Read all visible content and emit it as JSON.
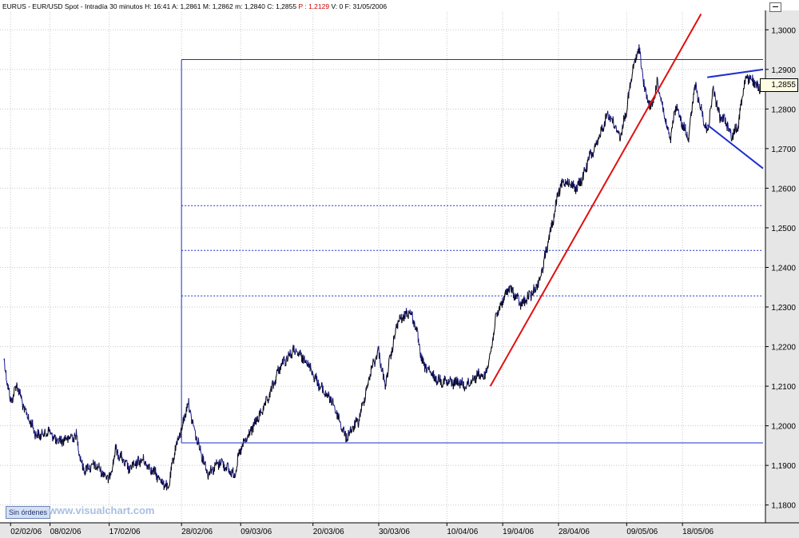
{
  "header": {
    "symbol": "EURUS",
    "description": "EUR/USD Spot - Intradía 30 minutos",
    "h_label": "H:",
    "h_value": "16:41",
    "a_label": "A:",
    "a_value": "1,2861",
    "m_label": "M:",
    "m_value": "1,2862",
    "low_label": "m:",
    "low_value": "1,2840",
    "c_label": "C:",
    "c_value": "1,2855",
    "p_label": "P :",
    "p_value": "1,2129",
    "v_label": "V:",
    "v_value": "0",
    "f_label": "F:",
    "f_value": "31/05/2006"
  },
  "buttons": {
    "orders_label": "Sin órdenes"
  },
  "watermark": "www.visualchart.com",
  "current_price_label": "1,2855",
  "colors": {
    "price_up": "#000000",
    "price_down": "#1a1a8c",
    "trendline": "#e01010",
    "overlay": "#1f2fcc",
    "header_red": "#cc0000",
    "axis_bg": "#e6e6e6"
  },
  "chart_data": {
    "type": "line",
    "title": "EURUS - EUR/USD Spot - Intradía 30 minutos",
    "xlabel": "",
    "ylabel": "",
    "x_ticks": [
      "02/02/06",
      "08/02/06",
      "17/02/06",
      "28/02/06",
      "09/03/06",
      "20/03/06",
      "30/03/06",
      "10/04/06",
      "19/04/06",
      "28/04/06",
      "09/05/06",
      "18/05/06"
    ],
    "y_ticks": [
      "1,1800",
      "1,1900",
      "1,2000",
      "1,2100",
      "1,2200",
      "1,2300",
      "1,2400",
      "1,2500",
      "1,2600",
      "1,2700",
      "1,2800",
      "1,2900",
      "1,3000"
    ],
    "ylim": [
      1.1755,
      1.3045
    ],
    "grid": true,
    "series": [
      {
        "kind": "intraday-price",
        "anchors": [
          [
            "01/02/06",
            1.2165
          ],
          [
            "02/02/06",
            1.206
          ],
          [
            "03/02/06",
            1.2105
          ],
          [
            "04/02/06",
            1.2045
          ],
          [
            "06/02/06",
            1.1975
          ],
          [
            "08/02/06",
            1.1985
          ],
          [
            "09/02/06",
            1.196
          ],
          [
            "12/02/06",
            1.1975
          ],
          [
            "13/02/06",
            1.189
          ],
          [
            "15/02/06",
            1.19
          ],
          [
            "17/02/06",
            1.1865
          ],
          [
            "18/02/06",
            1.194
          ],
          [
            "20/02/06",
            1.189
          ],
          [
            "22/02/06",
            1.1915
          ],
          [
            "24/02/06",
            1.188
          ],
          [
            "26/02/06",
            1.184
          ],
          [
            "27/02/06",
            1.194
          ],
          [
            "28/02/06",
            1.199
          ],
          [
            "01/03/06",
            1.206
          ],
          [
            "02/03/06",
            1.1985
          ],
          [
            "04/03/06",
            1.188
          ],
          [
            "06/03/06",
            1.191
          ],
          [
            "08/03/06",
            1.1875
          ],
          [
            "09/03/06",
            1.194
          ],
          [
            "11/03/06",
            1.2
          ],
          [
            "13/03/06",
            1.206
          ],
          [
            "15/03/06",
            1.215
          ],
          [
            "17/03/06",
            1.219
          ],
          [
            "19/03/06",
            1.2165
          ],
          [
            "21/03/06",
            1.21
          ],
          [
            "23/03/06",
            1.206
          ],
          [
            "25/03/06",
            1.197
          ],
          [
            "27/03/06",
            1.2015
          ],
          [
            "29/03/06",
            1.215
          ],
          [
            "30/03/06",
            1.219
          ],
          [
            "31/03/06",
            1.21
          ],
          [
            "02/04/06",
            1.226
          ],
          [
            "04/04/06",
            1.229
          ],
          [
            "05/04/06",
            1.225
          ],
          [
            "06/04/06",
            1.216
          ],
          [
            "08/04/06",
            1.212
          ],
          [
            "10/04/06",
            1.211
          ],
          [
            "12/04/06",
            1.211
          ],
          [
            "13/04/06",
            1.21
          ],
          [
            "15/04/06",
            1.213
          ],
          [
            "16/04/06",
            1.212
          ],
          [
            "17/04/06",
            1.218
          ],
          [
            "18/04/06",
            1.228
          ],
          [
            "20/04/06",
            1.235
          ],
          [
            "21/04/06",
            1.233
          ],
          [
            "22/04/06",
            1.2305
          ],
          [
            "24/04/06",
            1.234
          ],
          [
            "25/04/06",
            1.237
          ],
          [
            "26/04/06",
            1.244
          ],
          [
            "27/04/06",
            1.251
          ],
          [
            "28/04/06",
            1.259
          ],
          [
            "29/04/06",
            1.262
          ],
          [
            "01/05/06",
            1.26
          ],
          [
            "02/05/06",
            1.263
          ],
          [
            "03/05/06",
            1.268
          ],
          [
            "04/05/06",
            1.27
          ],
          [
            "05/05/06",
            1.275
          ],
          [
            "06/05/06",
            1.279
          ],
          [
            "07/05/06",
            1.276
          ],
          [
            "08/05/06",
            1.273
          ],
          [
            "09/05/06",
            1.28
          ],
          [
            "10/05/06",
            1.29
          ],
          [
            "11/05/06",
            1.2955
          ],
          [
            "12/05/06",
            1.284
          ],
          [
            "13/05/06",
            1.28
          ],
          [
            "14/05/06",
            1.287
          ],
          [
            "15/05/06",
            1.279
          ],
          [
            "16/05/06",
            1.272
          ],
          [
            "17/05/06",
            1.281
          ],
          [
            "18/05/06",
            1.276
          ],
          [
            "19/05/06",
            1.273
          ],
          [
            "20/05/06",
            1.286
          ],
          [
            "21/05/06",
            1.28
          ],
          [
            "22/05/06",
            1.274
          ],
          [
            "23/05/06",
            1.285
          ],
          [
            "24/05/06",
            1.278
          ],
          [
            "25/05/06",
            1.277
          ],
          [
            "26/05/06",
            1.273
          ],
          [
            "27/05/06",
            1.276
          ],
          [
            "28/05/06",
            1.287
          ],
          [
            "29/05/06",
            1.288
          ],
          [
            "30/05/06",
            1.2855
          ],
          [
            "31/05/06",
            1.2855
          ]
        ]
      }
    ],
    "overlays": {
      "box_top": 1.2925,
      "box_bottom": 1.1957,
      "box_start": "28/02/06",
      "fib_levels": [
        1.2556,
        1.2443,
        1.2328
      ],
      "trendline": {
        "start": [
          "17/04/06",
          1.21
        ],
        "end": [
          "21/05/06",
          1.304
        ]
      },
      "triangle_upper": {
        "start": [
          "22/05/06",
          1.288
        ],
        "end": [
          "31/05/06",
          1.29
        ]
      },
      "triangle_lower": {
        "start": [
          "22/05/06",
          1.276
        ],
        "end": [
          "31/05/06",
          1.265
        ]
      }
    }
  }
}
